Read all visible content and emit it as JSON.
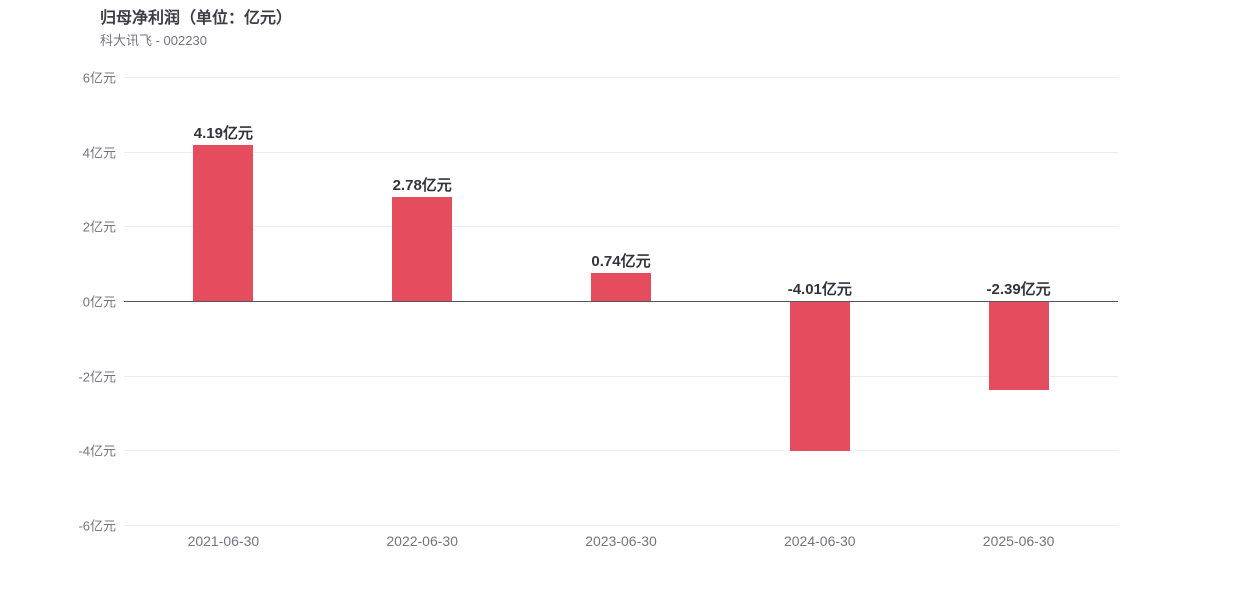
{
  "header": {
    "title": "归母净利润（单位：亿元）",
    "subtitle": "科大讯飞 - 002230"
  },
  "colors": {
    "bar": "#e54d5e",
    "gridline": "#ececf0",
    "zero_line": "#54545e",
    "title_text": "#3d3d46",
    "axis_text": "#74747e",
    "value_text": "#33333c",
    "background": "#ffffff"
  },
  "chart_data": {
    "type": "bar",
    "title": "归母净利润（单位：亿元）",
    "subtitle": "科大讯飞 - 002230",
    "categories": [
      "2021-06-30",
      "2022-06-30",
      "2023-06-30",
      "2024-06-30",
      "2025-06-30"
    ],
    "values": [
      4.19,
      2.78,
      0.74,
      -4.01,
      -2.39
    ],
    "value_labels": [
      "4.19亿元",
      "2.78亿元",
      "0.74亿元",
      "-4.01亿元",
      "-2.39亿元"
    ],
    "unit": "亿元",
    "xlabel": "",
    "ylabel": "亿元",
    "ylim": [
      -6,
      6
    ],
    "yticks": [
      {
        "value": 6,
        "label": "6亿元"
      },
      {
        "value": 4,
        "label": "4亿元"
      },
      {
        "value": 2,
        "label": "2亿元"
      },
      {
        "value": 0,
        "label": "0亿元"
      },
      {
        "value": -2,
        "label": "-2亿元"
      },
      {
        "value": -4,
        "label": "-4亿元"
      },
      {
        "value": -6,
        "label": "-6亿元"
      }
    ],
    "grid": true,
    "legend_position": "none",
    "bar_color": "#e54d5e"
  }
}
